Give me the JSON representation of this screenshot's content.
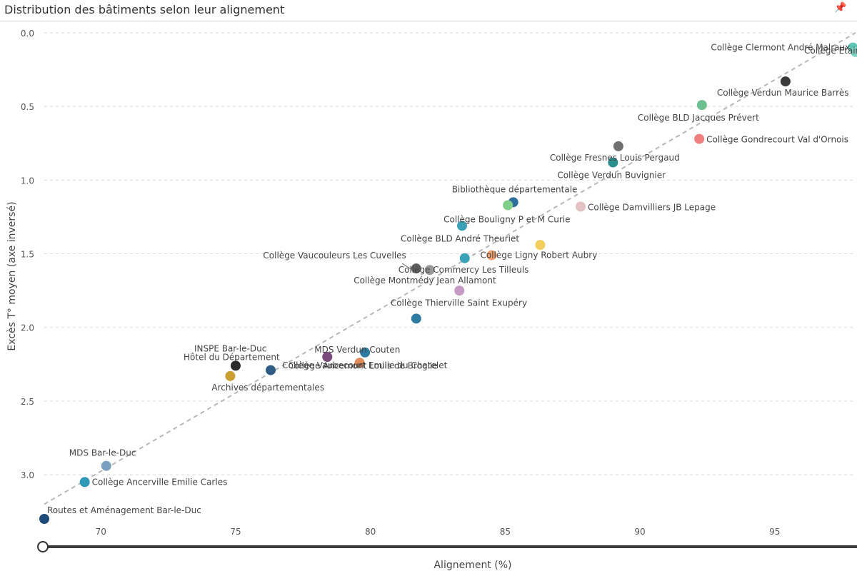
{
  "page": {
    "title": "Distribution des bâtiments selon leur alignement",
    "pin_icon": "pin-icon"
  },
  "chart_data": {
    "type": "scatter",
    "xlabel": "Alignement (%)",
    "ylabel": "Excès T° moyen (axe inversé)",
    "xlim": [
      67.9,
      98.0
    ],
    "ylim": [
      0.0,
      3.3
    ],
    "y_inverted": true,
    "x_ticks": [
      70,
      75,
      80,
      85,
      90,
      95
    ],
    "y_ticks": [
      "0.0",
      "0.5",
      "1.0",
      "1.5",
      "2.0",
      "2.5",
      "3.0"
    ],
    "grid": "horizontal dashed",
    "trendline": {
      "x": [
        67.9,
        98.0
      ],
      "y": [
        3.2,
        0.0
      ]
    },
    "points": [
      {
        "label": "Collège Clermont André Malraux",
        "x": 97.9,
        "y": 0.1,
        "color": "#5fc6b4"
      },
      {
        "label": "Collège Etain Louise Michel",
        "x": 98.0,
        "y": 0.13,
        "color": "#7fd0c2"
      },
      {
        "label": "Collège Verdun Maurice Barrès",
        "x": 95.4,
        "y": 0.33,
        "color": "#3a3a3a"
      },
      {
        "label": "Collège BLD Jacques Prévert",
        "x": 92.3,
        "y": 0.49,
        "color": "#6cc08f"
      },
      {
        "label": "Collège Gondrecourt Val d'Ornois",
        "x": 92.2,
        "y": 0.72,
        "color": "#f08080"
      },
      {
        "label": "Collège Fresnes Louis Pergaud",
        "x": 89.2,
        "y": 0.77,
        "color": "#707070"
      },
      {
        "label": "Collège Verdun Buvignier",
        "x": 89.0,
        "y": 0.88,
        "color": "#2a8f8c"
      },
      {
        "label": "Bibliothèque départementale",
        "x": 85.3,
        "y": 1.15,
        "color": "#2e6f9e"
      },
      {
        "label": "Collège Bouligny P et M Curie",
        "x": 85.1,
        "y": 1.17,
        "color": "#7fcf8a"
      },
      {
        "label": "Collège Damvilliers JB Lepage",
        "x": 87.8,
        "y": 1.18,
        "color": "#e3c3c3"
      },
      {
        "label": "Collège BLD André Theuriet",
        "x": 83.4,
        "y": 1.31,
        "color": "#3ba3b8"
      },
      {
        "label": "",
        "x": 86.3,
        "y": 1.44,
        "color": "#f2cf5c"
      },
      {
        "label": "Collège Ligny Robert Aubry",
        "x": 84.5,
        "y": 1.51,
        "color": "#f0a070"
      },
      {
        "label": "",
        "x": 83.5,
        "y": 1.53,
        "color": "#3ba3b8"
      },
      {
        "label": "Collège Vaucouleurs Les Cuvelles",
        "x": 81.7,
        "y": 1.6,
        "color": "#606060"
      },
      {
        "label": "Collège Commercy Les Tilleuls",
        "x": 82.2,
        "y": 1.61,
        "color": "#9a9a9a"
      },
      {
        "label": "Collège Montmédy Jean Allamont",
        "x": 83.3,
        "y": 1.75,
        "color": "#c49ac4"
      },
      {
        "label": "Collège Thierville Saint Exupéry",
        "x": 81.7,
        "y": 1.94,
        "color": "#2e7aa0"
      },
      {
        "label": "Collège Vaubecourt Emilie du Chatelet",
        "x": 79.8,
        "y": 2.17,
        "color": "#2e7aa0"
      },
      {
        "label": "MDS Verdun Couten",
        "x": 78.4,
        "y": 2.2,
        "color": "#7a4a7a"
      },
      {
        "label": "Collège Ancemont Louis de Broglie",
        "x": 79.6,
        "y": 2.24,
        "color": "#e08a5a"
      },
      {
        "label": "INSPE Bar-le-Duc",
        "x": 75.0,
        "y": 2.26,
        "color": "#2a2a2a"
      },
      {
        "label": "Hôtel du Département",
        "x": 76.3,
        "y": 2.29,
        "color": "#2e5c85"
      },
      {
        "label": "Archives départementales",
        "x": 74.8,
        "y": 2.33,
        "color": "#c9a030"
      },
      {
        "label": "MDS Bar-le-Duc",
        "x": 70.2,
        "y": 2.94,
        "color": "#7aa0c0"
      },
      {
        "label": "Collège Ancerville Emilie Carles",
        "x": 69.4,
        "y": 3.05,
        "color": "#2e9ab8"
      },
      {
        "label": "Routes et Aménagement Bar-le-Duc",
        "x": 67.9,
        "y": 3.3,
        "color": "#1e4a7a"
      }
    ]
  }
}
